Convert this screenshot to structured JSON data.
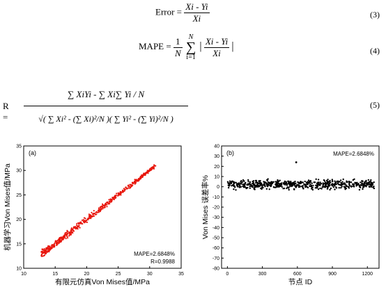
{
  "equations": {
    "eq3": {
      "lhs": "Error =",
      "num": "Xi - Yi",
      "den": "Xi",
      "number": "(3)"
    },
    "eq4": {
      "lhs": "MAPE =",
      "coef_num": "1",
      "coef_den": "N",
      "sum_top": "N",
      "sum_bottom": "i=1",
      "num": "Xi - Yi",
      "den": "Xi",
      "number": "(4)"
    },
    "eq5": {
      "lhs": "R =",
      "num": "∑ XiYi - ∑ Xi∑ Yi / N",
      "den": "√( ∑ Xi² - (∑ Xi)²/N )( ∑ Yi² - (∑ Yi)²/N )",
      "number": "(5)"
    }
  },
  "chart_data": [
    {
      "type": "scatter",
      "panel_label": "(a)",
      "xlabel": "有限元仿真Von Mises值/MPa",
      "ylabel": "机器学习Von Mises值/MPa",
      "xlim": [
        10,
        35
      ],
      "ylim": [
        10,
        35
      ],
      "xticks": [
        10,
        15,
        20,
        25,
        30,
        35
      ],
      "yticks": [
        10,
        15,
        20,
        25,
        30,
        35
      ],
      "annotations": [
        "MAPE=2.6848%",
        "R=0.9988"
      ],
      "color": "#e8160c",
      "series": [
        {
          "x_range": [
            12.8,
            31.0
          ],
          "relation": "y≈x"
        }
      ]
    },
    {
      "type": "scatter",
      "panel_label": "(b)",
      "xlabel": "节点 ID",
      "ylabel": "Von Mises 误差率%",
      "xlim": [
        -50,
        1300
      ],
      "ylim": [
        -80,
        40
      ],
      "xticks": [
        0,
        300,
        600,
        900,
        1200
      ],
      "yticks": [
        -80,
        -70,
        -60,
        -50,
        -40,
        -30,
        -20,
        -10,
        0,
        10,
        20,
        30,
        40
      ],
      "annotations": [
        "MAPE=2.6848%"
      ],
      "color": "#000000",
      "series": [
        {
          "x_range": [
            0,
            1260
          ],
          "y_band": [
            -4,
            8
          ],
          "outlier": [
            590,
            24
          ]
        }
      ]
    }
  ]
}
